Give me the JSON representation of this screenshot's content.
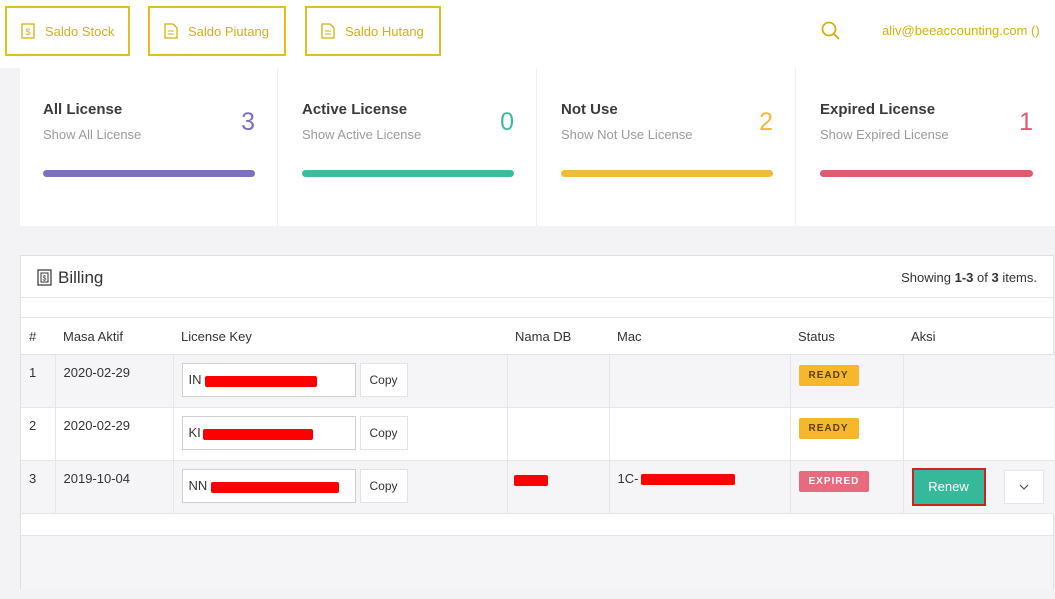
{
  "topbar": {
    "buttons": [
      {
        "label": "Saldo Stock"
      },
      {
        "label": "Saldo Piutang"
      },
      {
        "label": "Saldo Hutang"
      }
    ],
    "user": "aliv@beeaccounting.com ()",
    "accent": "#d4b010"
  },
  "cards": [
    {
      "title": "All License",
      "sub": "Show All License",
      "count": "3",
      "color": "#7b6fc2",
      "icon": "none"
    },
    {
      "title": "Active License",
      "sub": "Show Active License",
      "count": "0",
      "color": "#3dbb9c"
    },
    {
      "title": "Not Use",
      "sub": "Show Not Use License",
      "count": "2",
      "color": "#f0bb3a"
    },
    {
      "title": "Expired License",
      "sub": "Show Expired License",
      "count": "1",
      "color": "#e05a70"
    }
  ],
  "billing": {
    "title": "Billing",
    "showing_prefix": "Showing ",
    "showing_range": "1-3",
    "showing_of": " of ",
    "showing_total": "3",
    "showing_suffix": " items.",
    "columns": [
      "#",
      "Masa Aktif",
      "License Key",
      "Nama DB",
      "Mac",
      "Status",
      "Aksi"
    ],
    "rows": [
      {
        "num": "1",
        "masa_aktif": "2020-02-29",
        "license_prefix": "IN",
        "nama_db": "",
        "mac": "",
        "status": "READY",
        "copy": "Copy"
      },
      {
        "num": "2",
        "masa_aktif": "2020-02-29",
        "license_prefix": "KI",
        "nama_db": "",
        "mac": "",
        "status": "READY",
        "copy": "Copy"
      },
      {
        "num": "3",
        "masa_aktif": "2019-10-04",
        "license_prefix": "NN",
        "nama_db": "",
        "mac": "1C-",
        "status": "EXPIRED",
        "copy": "Copy",
        "action": "Renew"
      }
    ]
  }
}
